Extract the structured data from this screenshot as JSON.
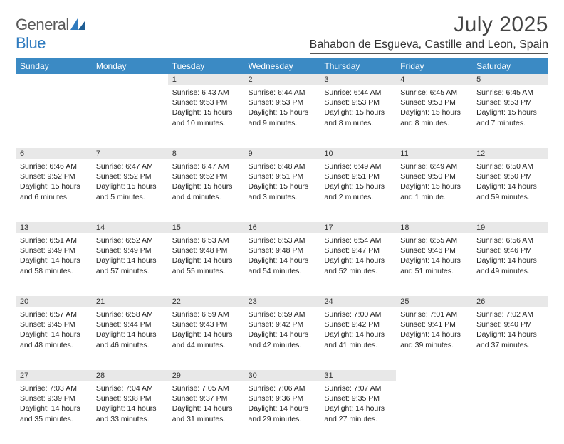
{
  "brand": {
    "general": "General",
    "blue": "Blue"
  },
  "title": "July 2025",
  "location": "Bahabon de Esgueva, Castille and Leon, Spain",
  "colors": {
    "header_bg": "#3b8ac4",
    "header_fg": "#ffffff",
    "daynum_bg": "#e8e8e8",
    "text": "#222222",
    "logo_gray": "#5a5a5a",
    "logo_blue": "#2f7bbf"
  },
  "typography": {
    "month_title_pt": 30,
    "location_pt": 16,
    "weekday_pt": 12,
    "daynum_pt": 11,
    "body_pt": 10.5
  },
  "layout": {
    "columns": 7,
    "rows": 5,
    "blank_leading_cells": 2
  },
  "weekdays": [
    "Sunday",
    "Monday",
    "Tuesday",
    "Wednesday",
    "Thursday",
    "Friday",
    "Saturday"
  ],
  "days": [
    {
      "n": 1,
      "sunrise": "6:43 AM",
      "sunset": "9:53 PM",
      "daylight": "15 hours and 10 minutes."
    },
    {
      "n": 2,
      "sunrise": "6:44 AM",
      "sunset": "9:53 PM",
      "daylight": "15 hours and 9 minutes."
    },
    {
      "n": 3,
      "sunrise": "6:44 AM",
      "sunset": "9:53 PM",
      "daylight": "15 hours and 8 minutes."
    },
    {
      "n": 4,
      "sunrise": "6:45 AM",
      "sunset": "9:53 PM",
      "daylight": "15 hours and 8 minutes."
    },
    {
      "n": 5,
      "sunrise": "6:45 AM",
      "sunset": "9:53 PM",
      "daylight": "15 hours and 7 minutes."
    },
    {
      "n": 6,
      "sunrise": "6:46 AM",
      "sunset": "9:52 PM",
      "daylight": "15 hours and 6 minutes."
    },
    {
      "n": 7,
      "sunrise": "6:47 AM",
      "sunset": "9:52 PM",
      "daylight": "15 hours and 5 minutes."
    },
    {
      "n": 8,
      "sunrise": "6:47 AM",
      "sunset": "9:52 PM",
      "daylight": "15 hours and 4 minutes."
    },
    {
      "n": 9,
      "sunrise": "6:48 AM",
      "sunset": "9:51 PM",
      "daylight": "15 hours and 3 minutes."
    },
    {
      "n": 10,
      "sunrise": "6:49 AM",
      "sunset": "9:51 PM",
      "daylight": "15 hours and 2 minutes."
    },
    {
      "n": 11,
      "sunrise": "6:49 AM",
      "sunset": "9:50 PM",
      "daylight": "15 hours and 1 minute."
    },
    {
      "n": 12,
      "sunrise": "6:50 AM",
      "sunset": "9:50 PM",
      "daylight": "14 hours and 59 minutes."
    },
    {
      "n": 13,
      "sunrise": "6:51 AM",
      "sunset": "9:49 PM",
      "daylight": "14 hours and 58 minutes."
    },
    {
      "n": 14,
      "sunrise": "6:52 AM",
      "sunset": "9:49 PM",
      "daylight": "14 hours and 57 minutes."
    },
    {
      "n": 15,
      "sunrise": "6:53 AM",
      "sunset": "9:48 PM",
      "daylight": "14 hours and 55 minutes."
    },
    {
      "n": 16,
      "sunrise": "6:53 AM",
      "sunset": "9:48 PM",
      "daylight": "14 hours and 54 minutes."
    },
    {
      "n": 17,
      "sunrise": "6:54 AM",
      "sunset": "9:47 PM",
      "daylight": "14 hours and 52 minutes."
    },
    {
      "n": 18,
      "sunrise": "6:55 AM",
      "sunset": "9:46 PM",
      "daylight": "14 hours and 51 minutes."
    },
    {
      "n": 19,
      "sunrise": "6:56 AM",
      "sunset": "9:46 PM",
      "daylight": "14 hours and 49 minutes."
    },
    {
      "n": 20,
      "sunrise": "6:57 AM",
      "sunset": "9:45 PM",
      "daylight": "14 hours and 48 minutes."
    },
    {
      "n": 21,
      "sunrise": "6:58 AM",
      "sunset": "9:44 PM",
      "daylight": "14 hours and 46 minutes."
    },
    {
      "n": 22,
      "sunrise": "6:59 AM",
      "sunset": "9:43 PM",
      "daylight": "14 hours and 44 minutes."
    },
    {
      "n": 23,
      "sunrise": "6:59 AM",
      "sunset": "9:42 PM",
      "daylight": "14 hours and 42 minutes."
    },
    {
      "n": 24,
      "sunrise": "7:00 AM",
      "sunset": "9:42 PM",
      "daylight": "14 hours and 41 minutes."
    },
    {
      "n": 25,
      "sunrise": "7:01 AM",
      "sunset": "9:41 PM",
      "daylight": "14 hours and 39 minutes."
    },
    {
      "n": 26,
      "sunrise": "7:02 AM",
      "sunset": "9:40 PM",
      "daylight": "14 hours and 37 minutes."
    },
    {
      "n": 27,
      "sunrise": "7:03 AM",
      "sunset": "9:39 PM",
      "daylight": "14 hours and 35 minutes."
    },
    {
      "n": 28,
      "sunrise": "7:04 AM",
      "sunset": "9:38 PM",
      "daylight": "14 hours and 33 minutes."
    },
    {
      "n": 29,
      "sunrise": "7:05 AM",
      "sunset": "9:37 PM",
      "daylight": "14 hours and 31 minutes."
    },
    {
      "n": 30,
      "sunrise": "7:06 AM",
      "sunset": "9:36 PM",
      "daylight": "14 hours and 29 minutes."
    },
    {
      "n": 31,
      "sunrise": "7:07 AM",
      "sunset": "9:35 PM",
      "daylight": "14 hours and 27 minutes."
    }
  ],
  "labels": {
    "sunrise": "Sunrise:",
    "sunset": "Sunset:",
    "daylight": "Daylight:"
  }
}
